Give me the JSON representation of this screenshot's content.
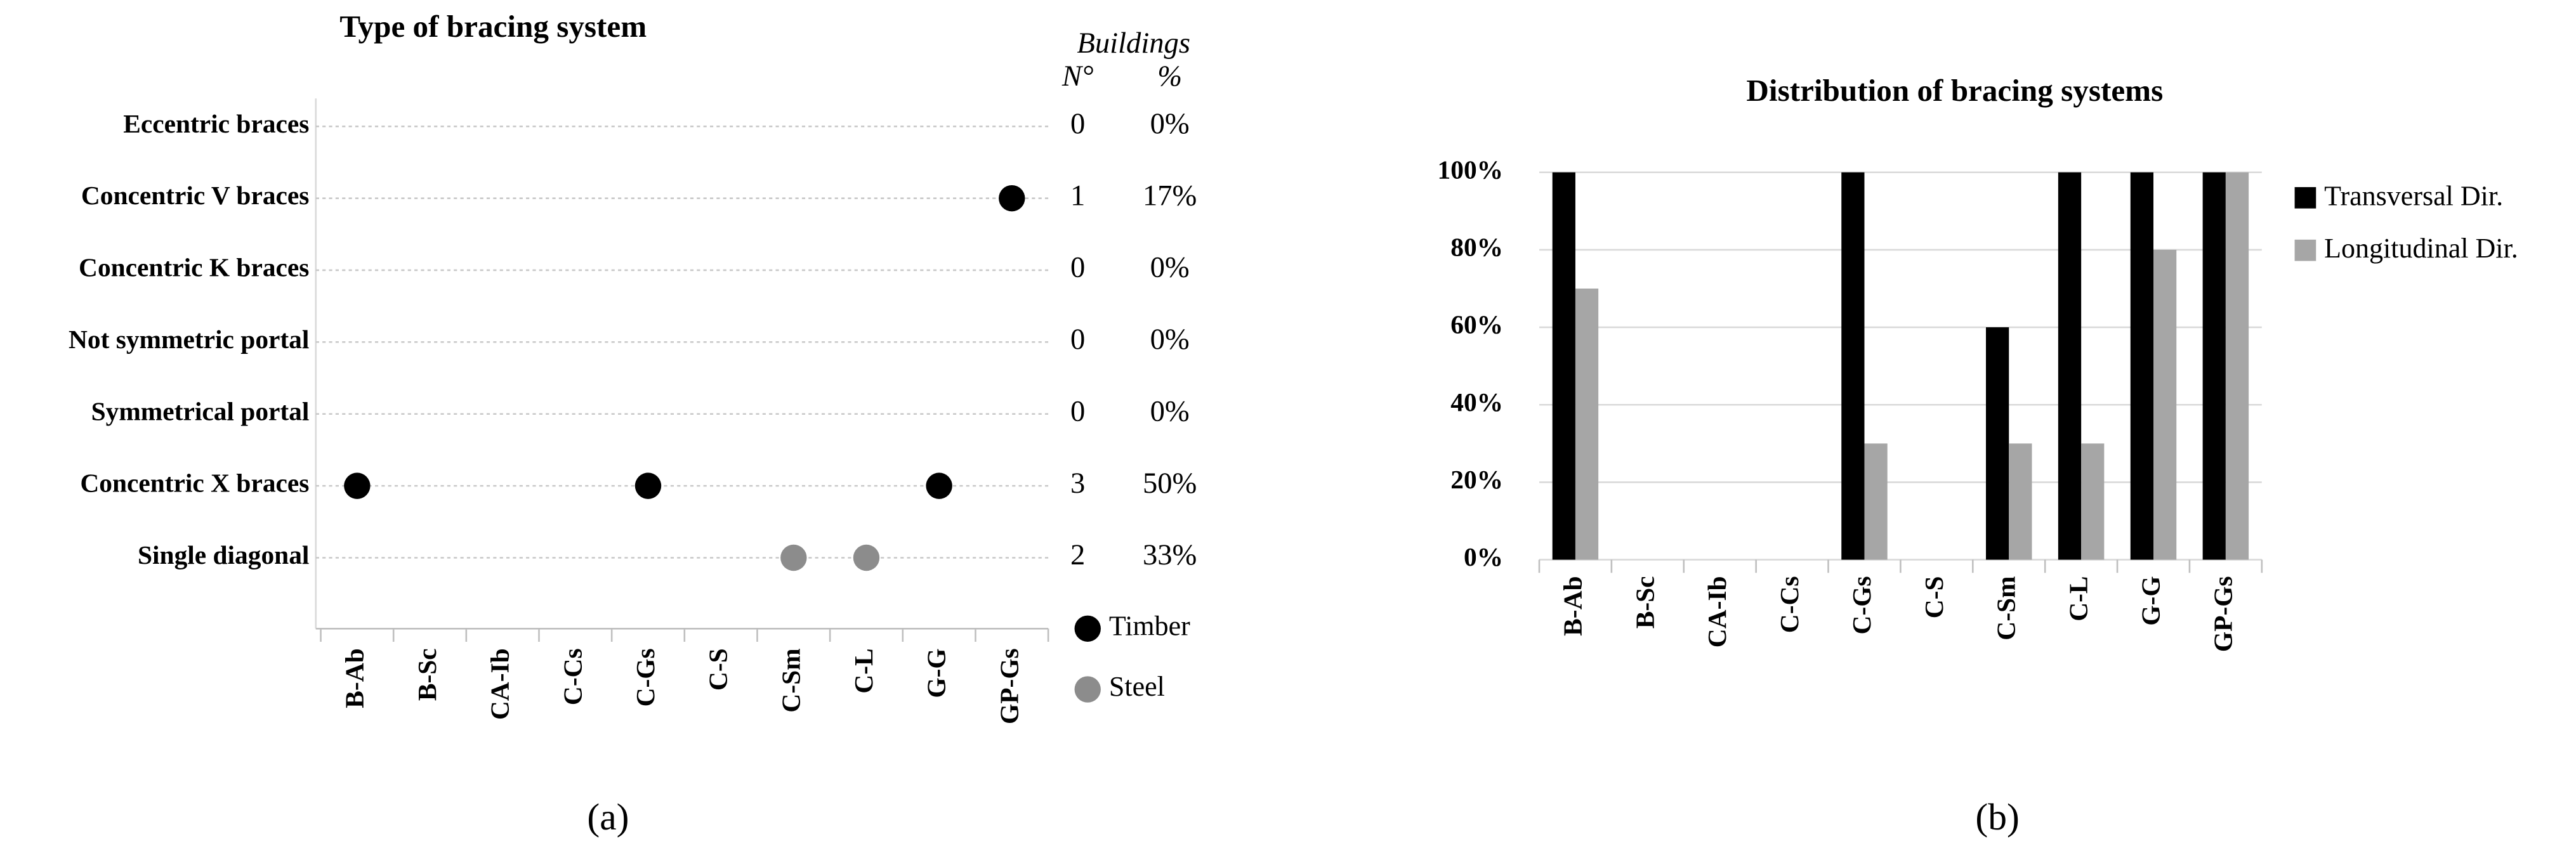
{
  "chart_data": [
    {
      "type": "dot-matrix",
      "title": "Type of bracing system",
      "x_categories": [
        "B-Ab",
        "B-Sc",
        "CA-Ib",
        "C-Cs",
        "C-Gs",
        "C-S",
        "C-Sm",
        "C-L",
        "G-G",
        "GP-Gs"
      ],
      "y_categories": [
        "Eccentric braces",
        "Concentric V braces",
        "Concentric K braces",
        "Not symmetric portal",
        "Symmetrical portal",
        "Concentric X braces",
        "Single diagonal"
      ],
      "series": [
        {
          "name": "Timber",
          "color": "#000000",
          "points": [
            {
              "x": "GP-Gs",
              "y": "Concentric V braces"
            },
            {
              "x": "B-Ab",
              "y": "Concentric X braces"
            },
            {
              "x": "C-Gs",
              "y": "Concentric X braces"
            },
            {
              "x": "G-G",
              "y": "Concentric X braces"
            }
          ]
        },
        {
          "name": "Steel",
          "color": "#8c8c8c",
          "points": [
            {
              "x": "C-Sm",
              "y": "Single diagonal"
            },
            {
              "x": "C-L",
              "y": "Single diagonal"
            }
          ]
        }
      ],
      "table_headers": {
        "group": "Buildings",
        "count": "N°",
        "percent": "%"
      },
      "counts": [
        0,
        1,
        0,
        0,
        0,
        3,
        2
      ],
      "percent": [
        0,
        17,
        0,
        0,
        0,
        50,
        33
      ],
      "percent_labels": [
        "0%",
        "17%",
        "0%",
        "0%",
        "0%",
        "50%",
        "33%"
      ],
      "legend": "bottom-right",
      "grid": true
    },
    {
      "type": "bar",
      "title": "Distribution of bracing systems",
      "categories": [
        "B-Ab",
        "B-Sc",
        "CA-Ib",
        "C-Cs",
        "C-Gs",
        "C-S",
        "C-Sm",
        "C-L",
        "G-G",
        "GP-Gs"
      ],
      "series": [
        {
          "name": "Transversal Dir.",
          "color": "#000000",
          "values": [
            100,
            0,
            0,
            0,
            100,
            0,
            60,
            100,
            100,
            100
          ]
        },
        {
          "name": "Longitudinal Dir.",
          "color": "#a6a6a6",
          "values": [
            70,
            0,
            0,
            0,
            30,
            0,
            30,
            30,
            80,
            100
          ]
        }
      ],
      "ylim": [
        0,
        100
      ],
      "yticks": [
        {
          "value": 0,
          "label": "0%"
        },
        {
          "value": 20,
          "label": "20%"
        },
        {
          "value": 40,
          "label": "40%"
        },
        {
          "value": 60,
          "label": "60%"
        },
        {
          "value": 80,
          "label": "80%"
        },
        {
          "value": 100,
          "label": "100%"
        }
      ],
      "legend": "right",
      "grid": true
    }
  ],
  "captions": [
    "(a)",
    "(b)"
  ]
}
